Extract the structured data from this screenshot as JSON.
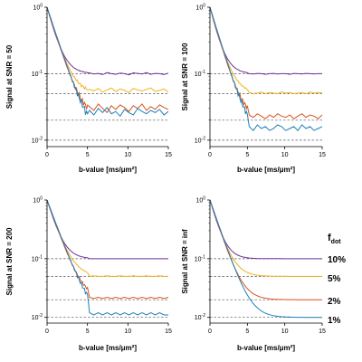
{
  "legend": {
    "title_main": "f",
    "title_sub": "dot",
    "entries": [
      "10%",
      "5%",
      "2%",
      "1%"
    ]
  },
  "series_colors": [
    "#7030A0",
    "#F2B01E",
    "#D9541E",
    "#1F80B8"
  ],
  "chart_data": [
    {
      "type": "line",
      "xlabel": "b-value [ms/μm²]",
      "ylabel": "Signal at SNR = 50",
      "xlim": [
        0,
        15
      ],
      "ylim": [
        0.008,
        1
      ],
      "yscale": "log",
      "xticks": [
        0,
        5,
        10,
        15
      ],
      "yticks": [
        {
          "value": 1,
          "mant": "10",
          "exp": "0"
        },
        {
          "value": 0.1,
          "mant": "10",
          "exp": "-1"
        },
        {
          "value": 0.01,
          "mant": "10",
          "exp": "-2"
        }
      ],
      "reference_lines": [
        0.1,
        0.05,
        0.02,
        0.01
      ],
      "series": [
        {
          "floor": 0.1,
          "noise": 0.012,
          "plateau": [
            0.103,
            0.099,
            0.101,
            0.097,
            0.104,
            0.1,
            0.098,
            0.102,
            0.1,
            0.096,
            0.103,
            0.101,
            0.099,
            0.104,
            0.098,
            0.101,
            0.1,
            0.097,
            0.102
          ]
        },
        {
          "floor": 0.05,
          "noise": 0.045,
          "plateau": [
            0.058,
            0.055,
            0.06,
            0.053,
            0.057,
            0.061,
            0.054,
            0.059,
            0.056,
            0.052,
            0.06,
            0.057,
            0.055,
            0.058,
            0.061,
            0.054,
            0.056,
            0.059,
            0.053
          ]
        },
        {
          "floor": 0.02,
          "noise": 0.1,
          "plateau": [
            0.032,
            0.028,
            0.035,
            0.03,
            0.026,
            0.033,
            0.029,
            0.034,
            0.031,
            0.027,
            0.033,
            0.03,
            0.035,
            0.028,
            0.032,
            0.029,
            0.034,
            0.031,
            0.029
          ]
        },
        {
          "floor": 0.01,
          "noise": 0.12,
          "plateau": [
            0.028,
            0.024,
            0.03,
            0.026,
            0.031,
            0.025,
            0.027,
            0.023,
            0.029,
            0.026,
            0.024,
            0.03,
            0.027,
            0.025,
            0.028,
            0.026,
            0.029,
            0.024,
            0.027
          ]
        }
      ]
    },
    {
      "type": "line",
      "xlabel": "b-value [ms/μm²]",
      "ylabel": "Signal at SNR = 100",
      "xlim": [
        0,
        15
      ],
      "ylim": [
        0.008,
        1
      ],
      "yscale": "log",
      "xticks": [
        0,
        5,
        10,
        15
      ],
      "yticks": [
        {
          "value": 1,
          "mant": "10",
          "exp": "0"
        },
        {
          "value": 0.1,
          "mant": "10",
          "exp": "-1"
        },
        {
          "value": 0.01,
          "mant": "10",
          "exp": "-2"
        }
      ],
      "reference_lines": [
        0.1,
        0.05,
        0.02,
        0.01
      ],
      "series": [
        {
          "floor": 0.1,
          "noise": 0.006,
          "plateau": [
            0.1,
            0.099,
            0.101,
            0.1,
            0.098,
            0.1,
            0.101,
            0.099,
            0.1,
            0.1,
            0.098,
            0.101,
            0.1,
            0.099,
            0.101,
            0.1,
            0.099,
            0.1,
            0.1
          ]
        },
        {
          "floor": 0.05,
          "noise": 0.02,
          "plateau": [
            0.052,
            0.05,
            0.051,
            0.053,
            0.05,
            0.052,
            0.051,
            0.05,
            0.053,
            0.051,
            0.052,
            0.05,
            0.051,
            0.052,
            0.05,
            0.053,
            0.051,
            0.052,
            0.051
          ]
        },
        {
          "floor": 0.02,
          "noise": 0.08,
          "plateau": [
            0.024,
            0.022,
            0.025,
            0.023,
            0.021,
            0.024,
            0.022,
            0.025,
            0.023,
            0.022,
            0.024,
            0.021,
            0.023,
            0.025,
            0.022,
            0.024,
            0.023,
            0.021,
            0.024
          ]
        },
        {
          "floor": 0.01,
          "noise": 0.1,
          "plateau": [
            0.016,
            0.014,
            0.017,
            0.015,
            0.016,
            0.014,
            0.015,
            0.017,
            0.016,
            0.014,
            0.015,
            0.016,
            0.014,
            0.017,
            0.015,
            0.016,
            0.014,
            0.015,
            0.016
          ]
        }
      ]
    },
    {
      "type": "line",
      "xlabel": "b-value [ms/μm²]",
      "ylabel": "Signal at SNR = 200",
      "xlim": [
        0,
        15
      ],
      "ylim": [
        0.008,
        1
      ],
      "yscale": "log",
      "xticks": [
        0,
        5,
        10,
        15
      ],
      "yticks": [
        {
          "value": 1,
          "mant": "10",
          "exp": "0"
        },
        {
          "value": 0.1,
          "mant": "10",
          "exp": "-1"
        },
        {
          "value": 0.01,
          "mant": "10",
          "exp": "-2"
        }
      ],
      "reference_lines": [
        0.1,
        0.05,
        0.02,
        0.01
      ],
      "series": [
        {
          "floor": 0.1,
          "noise": 0.003,
          "plateau": [
            0.1,
            0.1,
            0.1,
            0.1,
            0.1,
            0.1,
            0.1,
            0.1,
            0.1,
            0.1,
            0.1,
            0.1,
            0.1,
            0.1,
            0.1,
            0.1,
            0.1,
            0.1,
            0.1
          ]
        },
        {
          "floor": 0.05,
          "noise": 0.01,
          "plateau": [
            0.05,
            0.051,
            0.05,
            0.05,
            0.051,
            0.05,
            0.05,
            0.051,
            0.05,
            0.05,
            0.051,
            0.05,
            0.05,
            0.051,
            0.05,
            0.05,
            0.051,
            0.05,
            0.05
          ]
        },
        {
          "floor": 0.02,
          "noise": 0.05,
          "plateau": [
            0.022,
            0.021,
            0.022,
            0.021,
            0.022,
            0.021,
            0.022,
            0.021,
            0.022,
            0.021,
            0.022,
            0.021,
            0.022,
            0.021,
            0.022,
            0.021,
            0.022,
            0.021,
            0.022
          ]
        },
        {
          "floor": 0.01,
          "noise": 0.08,
          "plateau": [
            0.012,
            0.011,
            0.012,
            0.011,
            0.012,
            0.011,
            0.012,
            0.011,
            0.012,
            0.011,
            0.012,
            0.011,
            0.012,
            0.011,
            0.012,
            0.011,
            0.012,
            0.011,
            0.011
          ]
        }
      ]
    },
    {
      "type": "line",
      "xlabel": "b-value [ms/μm²]",
      "ylabel": "Signal at SNR = inf",
      "xlim": [
        0,
        15
      ],
      "ylim": [
        0.008,
        1
      ],
      "yscale": "log",
      "xticks": [
        0,
        5,
        10,
        15
      ],
      "yticks": [
        {
          "value": 1,
          "mant": "10",
          "exp": "0"
        },
        {
          "value": 0.1,
          "mant": "10",
          "exp": "-1"
        },
        {
          "value": 0.01,
          "mant": "10",
          "exp": "-2"
        }
      ],
      "reference_lines": [
        0.1,
        0.05,
        0.02,
        0.01
      ],
      "series": [
        {
          "floor": 0.1,
          "noise": 0,
          "plateau": []
        },
        {
          "floor": 0.05,
          "noise": 0,
          "plateau": []
        },
        {
          "floor": 0.02,
          "noise": 0,
          "plateau": []
        },
        {
          "floor": 0.01,
          "noise": 0,
          "plateau": []
        }
      ]
    }
  ]
}
